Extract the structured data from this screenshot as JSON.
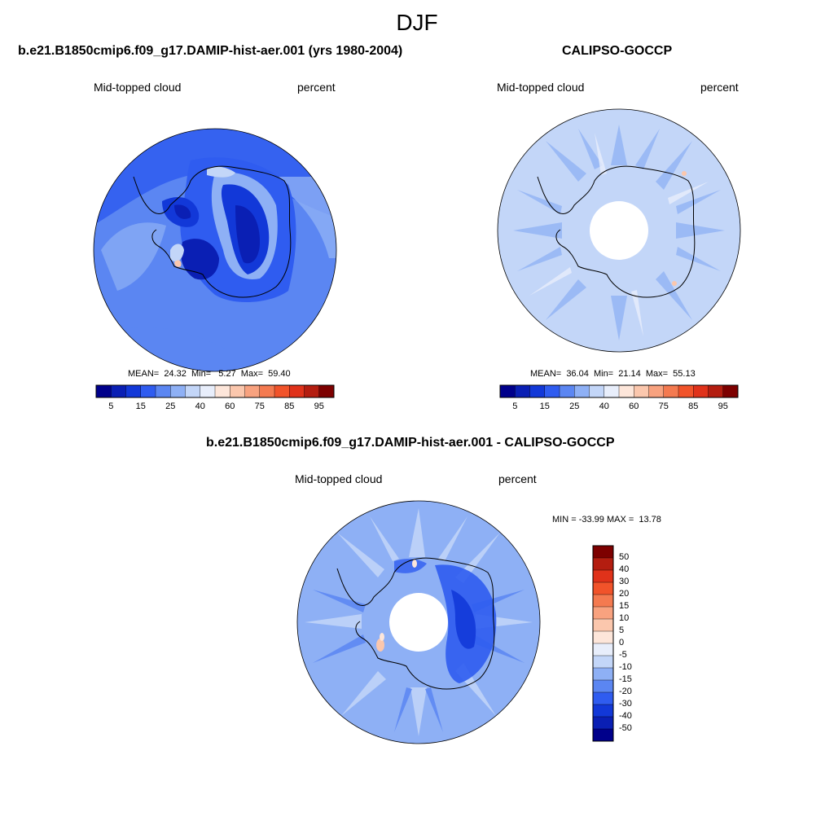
{
  "figure_title": "DJF",
  "colors": {
    "scale": [
      "#00008b",
      "#0a1fb4",
      "#1238d8",
      "#2f5cf0",
      "#5b86f2",
      "#8eb0f5",
      "#c3d6f8",
      "#e8eefb",
      "#fde6da",
      "#fbc7ad",
      "#f8a27f",
      "#f47a50",
      "#f1532a",
      "#e0321a",
      "#b41d10",
      "#7d0000"
    ],
    "coast": "#000000"
  },
  "panels": [
    {
      "id": "model",
      "title": "b.e21.B1850cmip6.f09_g17.DAMIP-hist-aer.001 (yrs 1980-2004)",
      "left_label": "Mid-topped cloud",
      "right_label": "percent",
      "stats": "MEAN=  24.32  Min=   5.27  Max=  59.40",
      "colorbar_ticks": [
        "5",
        "15",
        "25",
        "40",
        "60",
        "75",
        "85",
        "95"
      ]
    },
    {
      "id": "obs",
      "title": "CALIPSO-GOCCP",
      "left_label": "Mid-topped cloud",
      "right_label": "percent",
      "stats": "MEAN=  36.04  Min=  21.14  Max=  55.13",
      "colorbar_ticks": [
        "5",
        "15",
        "25",
        "40",
        "60",
        "75",
        "85",
        "95"
      ]
    },
    {
      "id": "diff",
      "title": "b.e21.B1850cmip6.f09_g17.DAMIP-hist-aer.001 - CALIPSO-GOCCP",
      "left_label": "Mid-topped cloud",
      "right_label": "percent",
      "stats": "MIN = -33.99 MAX =  13.78",
      "colorbar_ticks": [
        "50",
        "40",
        "30",
        "20",
        "15",
        "10",
        "5",
        "0",
        "-5",
        "-10",
        "-15",
        "-20",
        "-30",
        "-40",
        "-50"
      ]
    }
  ]
}
